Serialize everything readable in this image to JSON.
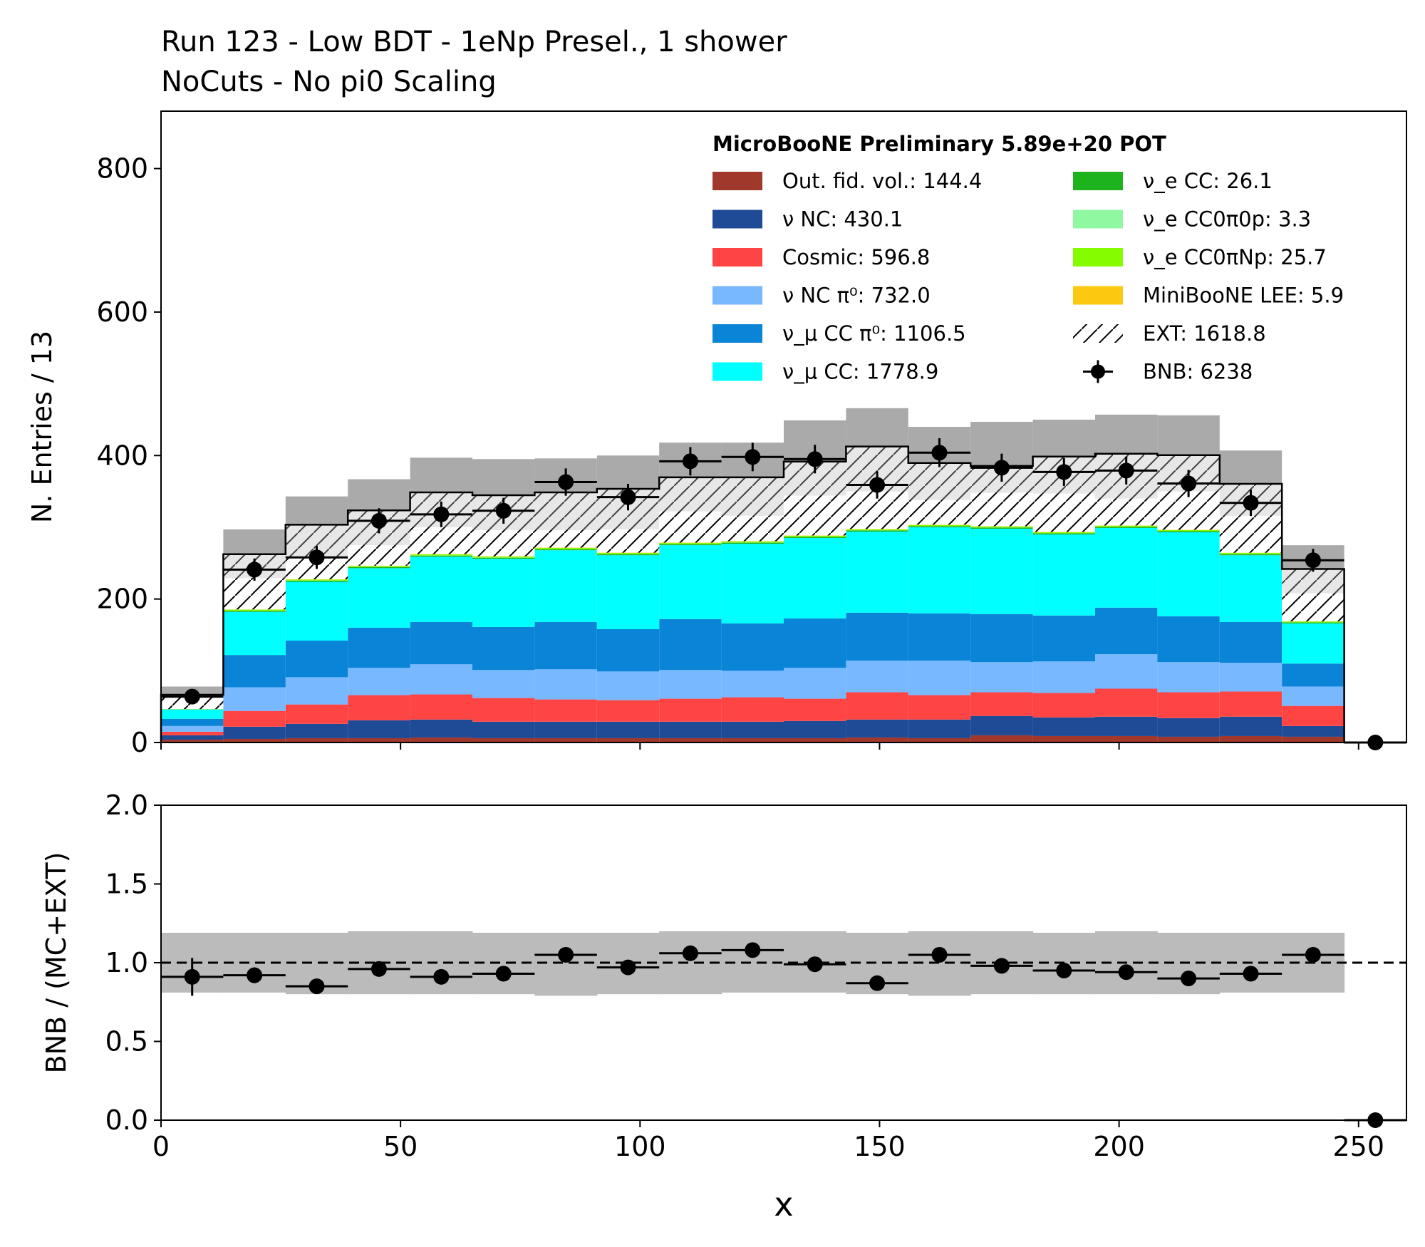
{
  "title_line1": "Run 123 - Low BDT - 1eNp Presel., 1 shower",
  "title_line2": "NoCuts - No pi0 Scaling",
  "chart_data": [
    {
      "type": "bar",
      "stacked": true,
      "ylabel": "N. Entries / 13",
      "xlim": [
        0,
        260
      ],
      "ylim": [
        0,
        880
      ],
      "yticks": [
        0,
        200,
        400,
        600,
        800
      ],
      "bin_width": 13,
      "bin_edges": [
        0,
        13,
        26,
        39,
        52,
        65,
        78,
        91,
        104,
        117,
        130,
        143,
        156,
        169,
        182,
        195,
        208,
        221,
        234,
        247,
        260
      ],
      "legend": {
        "title": "MicroBooNE Preliminary 5.89e+20 POT",
        "placement": "top-right",
        "columns": [
          [
            "Out. fid. vol.: 144.4",
            "ν NC: 430.1",
            "Cosmic: 596.8",
            "ν NC π⁰: 732.0",
            "ν_μ CC π⁰: 1106.5",
            "ν_μ CC: 1778.9"
          ],
          [
            "ν_e CC: 26.1",
            "ν_e CC0π0p: 3.3",
            "ν_e CC0πNp: 25.7",
            "MiniBooNE LEE: 5.9",
            "EXT: 1618.8",
            "BNB: 6238"
          ]
        ]
      },
      "series": [
        {
          "name": "Out. fid. vol.: 144.4",
          "color": "#a0392b",
          "values": [
            4,
            5,
            6,
            6,
            7,
            6,
            6,
            6,
            6,
            6,
            6,
            7,
            6,
            10,
            9,
            9,
            8,
            9,
            8,
            0
          ]
        },
        {
          "name": "ν NC: 430.1",
          "color": "#1f4a96",
          "values": [
            6,
            17,
            20,
            25,
            25,
            23,
            23,
            23,
            23,
            23,
            24,
            25,
            26,
            27,
            26,
            27,
            26,
            27,
            15,
            0
          ]
        },
        {
          "name": "Cosmic: 596.8",
          "color": "#ff4444",
          "values": [
            5,
            22,
            27,
            35,
            35,
            33,
            31,
            30,
            32,
            34,
            31,
            38,
            34,
            33,
            34,
            39,
            36,
            35,
            28,
            0
          ]
        },
        {
          "name": "ν NC π⁰: 732.0",
          "color": "#78b8ff",
          "values": [
            8,
            33,
            38,
            38,
            42,
            39,
            42,
            40,
            40,
            37,
            43,
            44,
            48,
            42,
            44,
            48,
            42,
            40,
            27,
            0
          ]
        },
        {
          "name": "ν_μ CC π⁰: 1106.5",
          "color": "#0a84d6",
          "values": [
            10,
            45,
            51,
            56,
            59,
            60,
            66,
            59,
            71,
            66,
            69,
            67,
            66,
            67,
            64,
            65,
            64,
            57,
            32,
            0
          ]
        },
        {
          "name": "ν_μ CC: 1778.9",
          "color": "#00ffff",
          "values": [
            13,
            60,
            82,
            83,
            91,
            95,
            100,
            103,
            103,
            111,
            112,
            113,
            120,
            119,
            113,
            111,
            117,
            93,
            56,
            0
          ]
        },
        {
          "name": "ν_e CC: 26.1",
          "color": "#1db31d",
          "values": [
            0.3,
            1.5,
            1.5,
            1.5,
            1.5,
            1.5,
            1.5,
            1.5,
            1.5,
            1.5,
            1.5,
            1.5,
            1.5,
            1.5,
            1.5,
            1.5,
            1.5,
            1.5,
            1.3,
            0
          ]
        },
        {
          "name": "ν_e CC0π0p: 3.3",
          "color": "#90f8a0",
          "values": [
            0,
            0.2,
            0.2,
            0.2,
            0.2,
            0.2,
            0.2,
            0.2,
            0.2,
            0.2,
            0.2,
            0.2,
            0.2,
            0.2,
            0.2,
            0.2,
            0.2,
            0.2,
            0.1,
            0
          ]
        },
        {
          "name": "ν_e CC0πNp: 25.7",
          "color": "#86fc00",
          "values": [
            0.3,
            1.5,
            1.5,
            1.5,
            1.5,
            1.5,
            1.5,
            1.5,
            1.5,
            1.5,
            1.5,
            1.5,
            1.5,
            1.5,
            1.5,
            1.5,
            1.5,
            1.5,
            1.3,
            0
          ]
        },
        {
          "name": "MiniBooNE LEE: 5.9",
          "color": "#fcc810",
          "values": [
            0,
            0.3,
            0.3,
            0.3,
            0.4,
            0.4,
            0.4,
            0.4,
            0.4,
            0.4,
            0.4,
            0.4,
            0.4,
            0.3,
            0.3,
            0.3,
            0.3,
            0.3,
            0.2,
            0
          ]
        },
        {
          "name": "EXT: 1618.8",
          "color": "#ffffff",
          "hatch": true,
          "values": [
            20,
            77,
            76,
            77,
            86,
            85,
            77,
            89,
            91,
            89,
            103,
            115,
            86,
            84,
            105,
            100,
            104,
            96,
            73,
            0
          ]
        }
      ],
      "uncertainty_band_top": [
        78,
        297,
        343,
        367,
        397,
        395,
        396,
        400,
        418,
        418,
        449,
        466,
        440,
        447,
        450,
        457,
        456,
        407,
        275,
        0
      ],
      "uncertainty_band_bottom": [
        63,
        229,
        258,
        275,
        300,
        296,
        296,
        297,
        322,
        316,
        344,
        350,
        338,
        348,
        347,
        340,
        350,
        316,
        208,
        0
      ],
      "data": {
        "name": "BNB: 6238",
        "color": "#000000",
        "x": [
          6.5,
          19.5,
          32.5,
          45.5,
          58.5,
          71.5,
          84.5,
          97.5,
          110.5,
          123.5,
          136.5,
          149.5,
          162.5,
          175.5,
          188.5,
          201.5,
          214.5,
          227.5,
          240.5,
          253.5
        ],
        "y": [
          64,
          241,
          258,
          309,
          318,
          323,
          363,
          342,
          392,
          398,
          395,
          359,
          404,
          383,
          377,
          379,
          361,
          334,
          254,
          0
        ],
        "yerr": [
          8,
          15.5,
          16,
          17.5,
          17.8,
          18,
          19,
          18.5,
          19.8,
          19.9,
          19.9,
          19,
          20.1,
          19.6,
          19.4,
          19.5,
          19,
          18.3,
          15.9,
          0
        ]
      }
    },
    {
      "type": "scatter",
      "xlabel": "x",
      "ylabel": "BNB / (MC+EXT)",
      "xlim": [
        0,
        260
      ],
      "ylim": [
        0,
        2
      ],
      "xticks": [
        0,
        50,
        100,
        150,
        200,
        250
      ],
      "yticks": [
        0.0,
        0.5,
        1.0,
        1.5,
        2.0
      ],
      "reference_line": 1.0,
      "uncertainty_band_top": [
        1.19,
        1.19,
        1.19,
        1.2,
        1.2,
        1.19,
        1.19,
        1.19,
        1.2,
        1.2,
        1.2,
        1.19,
        1.2,
        1.2,
        1.19,
        1.2,
        1.19,
        1.19,
        1.19,
        0
      ],
      "uncertainty_band_bottom": [
        0.81,
        0.81,
        0.8,
        0.8,
        0.8,
        0.8,
        0.79,
        0.8,
        0.8,
        0.81,
        0.81,
        0.8,
        0.79,
        0.8,
        0.8,
        0.8,
        0.8,
        0.81,
        0.81,
        0
      ],
      "x": [
        6.5,
        19.5,
        32.5,
        45.5,
        58.5,
        71.5,
        84.5,
        97.5,
        110.5,
        123.5,
        136.5,
        149.5,
        162.5,
        175.5,
        188.5,
        201.5,
        214.5,
        227.5,
        240.5,
        253.5
      ],
      "y": [
        0.91,
        0.92,
        0.85,
        0.96,
        0.91,
        0.93,
        1.05,
        0.97,
        1.06,
        1.08,
        0.99,
        0.87,
        1.05,
        0.98,
        0.95,
        0.94,
        0.9,
        0.93,
        1.05,
        0
      ],
      "yerr": [
        0.12,
        0.05,
        0.04,
        0.04,
        0.04,
        0.04,
        0.04,
        0.04,
        0.04,
        0.04,
        0.04,
        0.03,
        0.04,
        0.04,
        0.04,
        0.04,
        0.04,
        0.04,
        0.05,
        0
      ]
    }
  ]
}
